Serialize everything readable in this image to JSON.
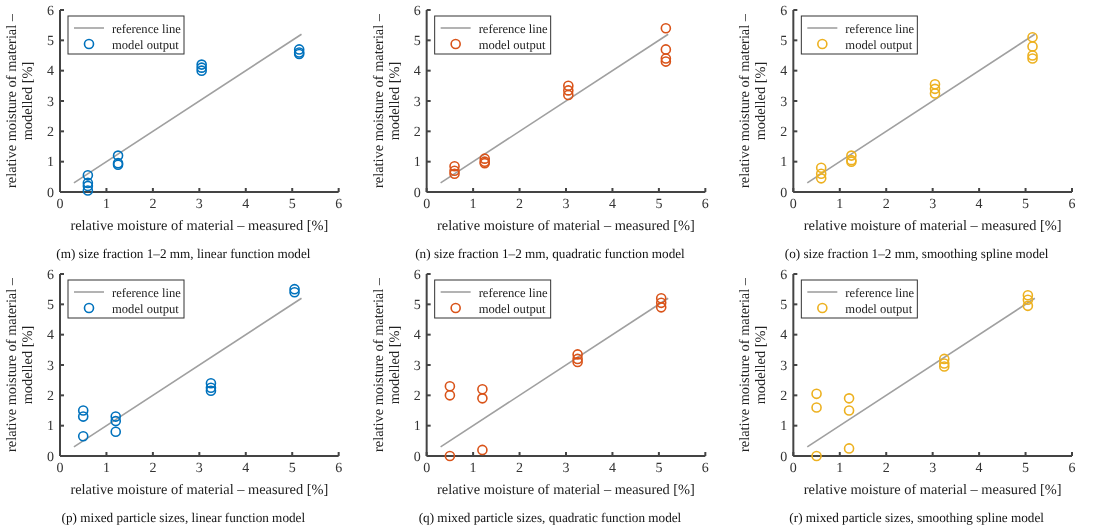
{
  "chart_data": [
    {
      "type": "scatter",
      "xlabel": "relative moisture of material – measured [%]",
      "ylabel": "relative moisture of material – modelled [%]",
      "xlim": [
        0,
        6
      ],
      "ylim": [
        0,
        6
      ],
      "xticks": [
        0,
        1,
        2,
        3,
        4,
        5,
        6
      ],
      "yticks": [
        0,
        1,
        2,
        3,
        4,
        5,
        6
      ],
      "legend": "top left",
      "annotations": [
        "(m) size fraction 1–2 mm, linear function model"
      ],
      "series": [
        {
          "name": "reference line",
          "type": "line",
          "marker": "none",
          "color": "#a0a0a0",
          "x": [
            0.3,
            5.2
          ],
          "values": [
            0.3,
            5.2
          ]
        },
        {
          "name": "model output",
          "marker": "circle",
          "color": "#0072bd",
          "x": [
            0.6,
            0.6,
            0.6,
            0.6,
            1.25,
            1.25,
            1.25,
            3.05,
            3.05,
            3.05,
            5.15,
            5.15,
            5.15
          ],
          "values": [
            0.55,
            0.3,
            0.2,
            0.05,
            1.2,
            0.95,
            0.9,
            4.2,
            4.1,
            4.0,
            4.7,
            4.6,
            4.55
          ]
        }
      ]
    },
    {
      "type": "scatter",
      "xlabel": "relative moisture of material – measured [%]",
      "ylabel": "relative moisture of material – modelled [%]",
      "xlim": [
        0,
        6
      ],
      "ylim": [
        0,
        6
      ],
      "xticks": [
        0,
        1,
        2,
        3,
        4,
        5,
        6
      ],
      "yticks": [
        0,
        1,
        2,
        3,
        4,
        5,
        6
      ],
      "legend": "top left",
      "annotations": [
        "(n) size fraction 1–2 mm, quadratic function model"
      ],
      "series": [
        {
          "name": "reference line",
          "type": "line",
          "marker": "none",
          "color": "#a0a0a0",
          "x": [
            0.3,
            5.2
          ],
          "values": [
            0.3,
            5.2
          ]
        },
        {
          "name": "model output",
          "marker": "circle",
          "color": "#d95319",
          "x": [
            0.6,
            0.6,
            0.6,
            1.25,
            1.25,
            1.25,
            3.05,
            3.05,
            3.05,
            5.15,
            5.15,
            5.15,
            5.15
          ],
          "values": [
            0.85,
            0.7,
            0.6,
            1.1,
            1.0,
            0.95,
            3.5,
            3.35,
            3.2,
            5.4,
            4.7,
            4.4,
            4.3
          ]
        }
      ]
    },
    {
      "type": "scatter",
      "xlabel": "relative moisture of material – measured [%]",
      "ylabel": "relative moisture of material – modelled [%]",
      "xlim": [
        0,
        6
      ],
      "ylim": [
        0,
        6
      ],
      "xticks": [
        0,
        1,
        2,
        3,
        4,
        5,
        6
      ],
      "yticks": [
        0,
        1,
        2,
        3,
        4,
        5,
        6
      ],
      "legend": "top left",
      "annotations": [
        "(o) size fraction 1–2 mm, smoothing spline model"
      ],
      "series": [
        {
          "name": "reference line",
          "type": "line",
          "marker": "none",
          "color": "#a0a0a0",
          "x": [
            0.3,
            5.2
          ],
          "values": [
            0.3,
            5.2
          ]
        },
        {
          "name": "model output",
          "marker": "circle",
          "color": "#edb120",
          "x": [
            0.6,
            0.6,
            0.6,
            1.25,
            1.25,
            1.25,
            3.05,
            3.05,
            3.05,
            5.15,
            5.15,
            5.15,
            5.15
          ],
          "values": [
            0.8,
            0.6,
            0.45,
            1.2,
            1.05,
            1.0,
            3.55,
            3.4,
            3.25,
            5.1,
            4.8,
            4.5,
            4.4
          ]
        }
      ]
    },
    {
      "type": "scatter",
      "xlabel": "relative moisture of material – measured [%]",
      "ylabel": "relative moisture of material – modelled [%]",
      "xlim": [
        0,
        6
      ],
      "ylim": [
        0,
        6
      ],
      "xticks": [
        0,
        1,
        2,
        3,
        4,
        5,
        6
      ],
      "yticks": [
        0,
        1,
        2,
        3,
        4,
        5,
        6
      ],
      "legend": "top left",
      "annotations": [
        "(p) mixed particle sizes, linear function model"
      ],
      "series": [
        {
          "name": "reference line",
          "type": "line",
          "marker": "none",
          "color": "#a0a0a0",
          "x": [
            0.3,
            5.2
          ],
          "values": [
            0.3,
            5.2
          ]
        },
        {
          "name": "model output",
          "marker": "circle",
          "color": "#0072bd",
          "x": [
            0.5,
            0.5,
            0.5,
            1.2,
            1.2,
            1.2,
            3.25,
            3.25,
            3.25,
            5.05,
            5.05
          ],
          "values": [
            1.5,
            1.3,
            0.65,
            1.3,
            1.15,
            0.8,
            2.4,
            2.25,
            2.15,
            5.5,
            5.4
          ]
        }
      ]
    },
    {
      "type": "scatter",
      "xlabel": "relative moisture of material – measured [%]",
      "ylabel": "relative moisture of material – modelled [%]",
      "xlim": [
        0,
        6
      ],
      "ylim": [
        0,
        6
      ],
      "xticks": [
        0,
        1,
        2,
        3,
        4,
        5,
        6
      ],
      "yticks": [
        0,
        1,
        2,
        3,
        4,
        5,
        6
      ],
      "legend": "top left",
      "annotations": [
        "(q) mixed particle sizes, quadratic function model"
      ],
      "series": [
        {
          "name": "reference line",
          "type": "line",
          "marker": "none",
          "color": "#a0a0a0",
          "x": [
            0.3,
            5.2
          ],
          "values": [
            0.3,
            5.2
          ]
        },
        {
          "name": "model output",
          "marker": "circle",
          "color": "#d95319",
          "x": [
            0.5,
            0.5,
            0.5,
            1.2,
            1.2,
            1.2,
            3.25,
            3.25,
            3.25,
            5.05,
            5.05,
            5.05
          ],
          "values": [
            2.3,
            2.0,
            0.0,
            2.2,
            1.9,
            0.2,
            3.35,
            3.2,
            3.1,
            5.2,
            5.05,
            4.9
          ]
        }
      ]
    },
    {
      "type": "scatter",
      "xlabel": "relative moisture of material – measured [%]",
      "ylabel": "relative moisture of material – modelled [%]",
      "xlim": [
        0,
        6
      ],
      "ylim": [
        0,
        6
      ],
      "xticks": [
        0,
        1,
        2,
        3,
        4,
        5,
        6
      ],
      "yticks": [
        0,
        1,
        2,
        3,
        4,
        5,
        6
      ],
      "legend": "top left",
      "annotations": [
        "(r) mixed particle sizes, smoothing spline model"
      ],
      "series": [
        {
          "name": "reference line",
          "type": "line",
          "marker": "none",
          "color": "#a0a0a0",
          "x": [
            0.3,
            5.2
          ],
          "values": [
            0.3,
            5.2
          ]
        },
        {
          "name": "model output",
          "marker": "circle",
          "color": "#edb120",
          "x": [
            0.5,
            0.5,
            0.5,
            1.2,
            1.2,
            1.2,
            3.25,
            3.25,
            3.25,
            5.05,
            5.05,
            5.05
          ],
          "values": [
            2.05,
            1.6,
            0.0,
            1.9,
            1.5,
            0.25,
            3.2,
            3.05,
            2.95,
            5.3,
            5.15,
            4.95
          ]
        }
      ]
    }
  ]
}
